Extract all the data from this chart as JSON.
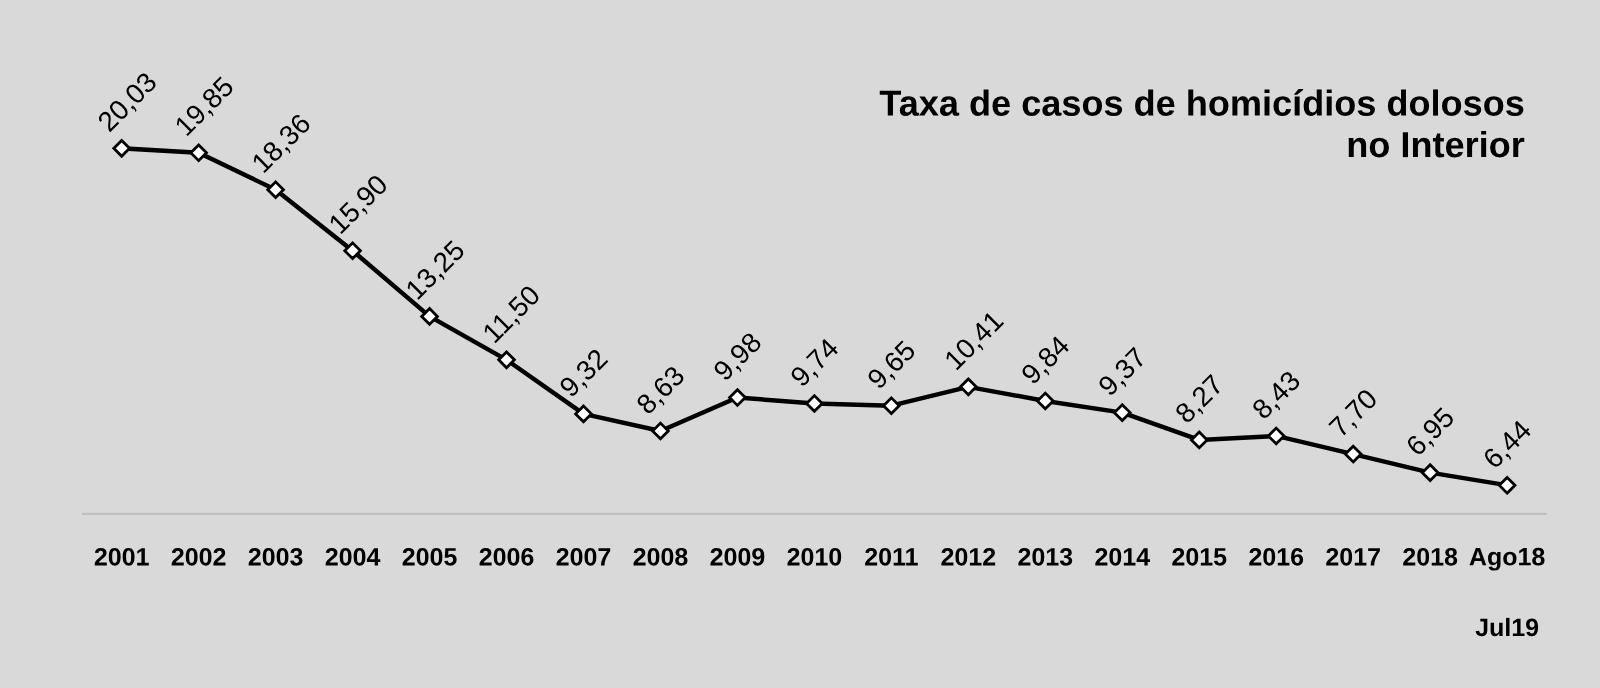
{
  "chart_data": {
    "type": "line",
    "title": "Taxa de casos de homicídios dolosos\nno Interior",
    "categories": [
      "2001",
      "2002",
      "2003",
      "2004",
      "2005",
      "2006",
      "2007",
      "2008",
      "2009",
      "2010",
      "2011",
      "2012",
      "2013",
      "2014",
      "2015",
      "2016",
      "2017",
      "2018",
      "Ago18"
    ],
    "values": [
      20.03,
      19.85,
      18.36,
      15.9,
      13.25,
      11.5,
      9.32,
      8.63,
      9.98,
      9.74,
      9.65,
      10.41,
      9.84,
      9.37,
      8.27,
      8.43,
      7.7,
      6.95,
      6.44
    ],
    "value_labels": [
      "20,03",
      "19,85",
      "18,36",
      "15,90",
      "13,25",
      "11,50",
      "9,32",
      "8,63",
      "9,98",
      "9,74",
      "9,65",
      "10,41",
      "9,84",
      "9,37",
      "8,27",
      "8,43",
      "7,70",
      "6,95",
      "6,44"
    ],
    "color": "#000000",
    "marker": "diamond",
    "line_style": "solid",
    "annotations": [
      "Jul19"
    ],
    "grid": false,
    "legend": false
  }
}
